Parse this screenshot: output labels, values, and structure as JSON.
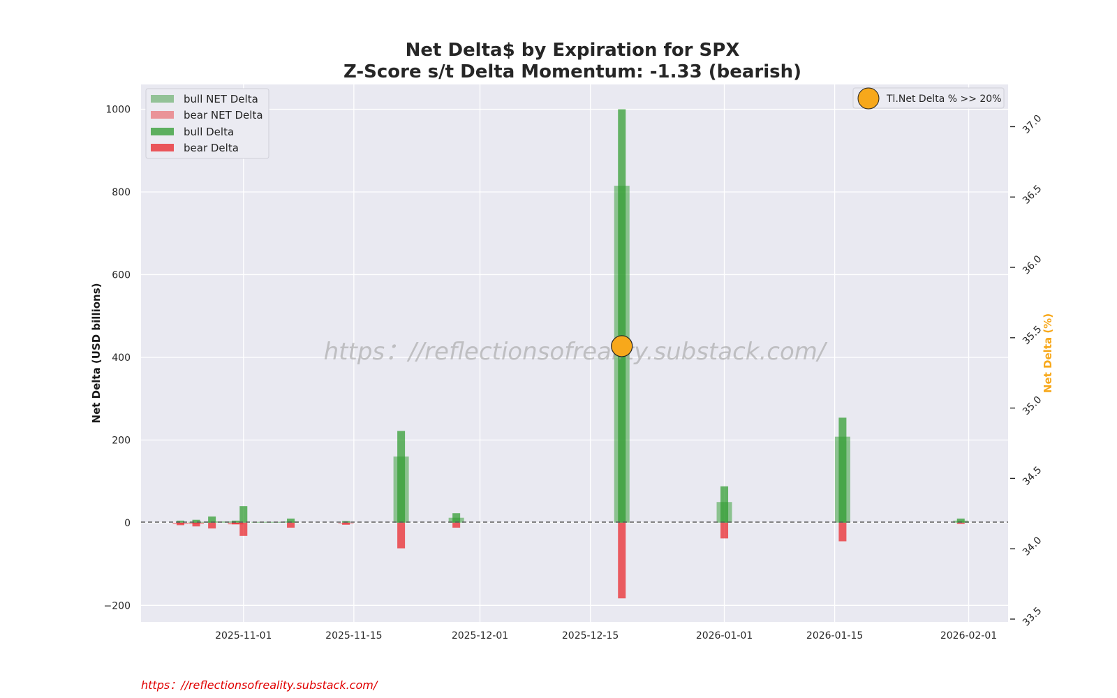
{
  "chart_data": {
    "type": "bar",
    "title": "Net Delta$ by Expiration for SPX",
    "subtitle": "Z-Score s/t Delta Momentum: -1.33 (bearish)",
    "ylabel": "Net Delta (USD billions)",
    "y2label": "Net Delta (%)",
    "ylim": [
      -240,
      1060
    ],
    "y2lim": [
      33.48,
      37.3
    ],
    "xlim": [
      "2025-10-19",
      "2026-02-06"
    ],
    "x_ticks": [
      "2025-11-01",
      "2025-11-15",
      "2025-12-01",
      "2025-12-15",
      "2026-01-01",
      "2026-01-15",
      "2026-02-01"
    ],
    "y_ticks": [
      -200,
      0,
      200,
      400,
      600,
      800,
      1000
    ],
    "y2_ticks": [
      33.5,
      34.0,
      34.5,
      35.0,
      35.5,
      36.0,
      36.5,
      37.0
    ],
    "y_tick_labels": [
      "−200",
      "0",
      "200",
      "400",
      "600",
      "800",
      "1000"
    ],
    "y2_tick_labels": [
      "33.5",
      "34.0",
      "34.5",
      "35.0",
      "35.5",
      "36.0",
      "36.5",
      "37.0"
    ],
    "x_tick_labels": [
      "2025-11-01",
      "2025-11-15",
      "2025-12-01",
      "2025-12-15",
      "2026-01-01",
      "2026-01-15",
      "2026-02-01"
    ],
    "grid": true,
    "zero_line": true,
    "legend_position": "upper-left",
    "legend2_position": "upper-right",
    "legend": [
      {
        "label": "bull NET Delta",
        "color": "#3c9a3c",
        "alpha": 0.5
      },
      {
        "label": "bear NET Delta",
        "color": "#e8272b",
        "alpha": 0.45
      },
      {
        "label": "bull Delta",
        "color": "#2e9b2e",
        "alpha": 0.75
      },
      {
        "label": "bear Delta",
        "color": "#ea2327",
        "alpha": 0.75
      }
    ],
    "legend2": {
      "label": "Tl.Net Delta % >> 20%",
      "color": "#f7a81b"
    },
    "colors": {
      "bull": "#2e9b2e",
      "bear": "#ea2327",
      "marker": "#f7a81b",
      "background": "#e9e9f1"
    },
    "series": [
      {
        "name": "bull NET Delta",
        "x": [
          "2025-10-26",
          "2025-10-28",
          "2025-10-30",
          "2025-11-03",
          "2025-11-05",
          "2025-11-07",
          "2025-11-21",
          "2025-11-28",
          "2025-12-19",
          "2026-01-01",
          "2026-01-16",
          "2026-01-31"
        ],
        "values": [
          2,
          3,
          3,
          2,
          2,
          3,
          160,
          12,
          815,
          50,
          208,
          5
        ]
      },
      {
        "name": "bear NET Delta",
        "x": [
          "2025-10-24",
          "2025-10-26",
          "2025-10-31",
          "2025-11-14"
        ],
        "values": [
          -3,
          -3,
          -4,
          -2
        ]
      },
      {
        "name": "bull Delta",
        "x": [
          "2025-10-24",
          "2025-10-26",
          "2025-10-28",
          "2025-10-31",
          "2025-11-01",
          "2025-11-07",
          "2025-11-14",
          "2025-11-21",
          "2025-11-28",
          "2025-12-19",
          "2026-01-01",
          "2026-01-16",
          "2026-01-31"
        ],
        "values": [
          5,
          7,
          15,
          5,
          40,
          10,
          4,
          222,
          23,
          1000,
          88,
          254,
          10
        ]
      },
      {
        "name": "bear Delta",
        "x": [
          "2025-10-24",
          "2025-10-26",
          "2025-10-28",
          "2025-10-31",
          "2025-11-01",
          "2025-11-07",
          "2025-11-14",
          "2025-11-21",
          "2025-11-28",
          "2025-12-19",
          "2026-01-01",
          "2026-01-16",
          "2026-01-31"
        ],
        "values": [
          -6,
          -9,
          -14,
          -4,
          -32,
          -12,
          -5,
          -62,
          -12,
          -183,
          -38,
          -45,
          -3
        ]
      }
    ],
    "markers": [
      {
        "name": "Tl.Net Delta % >> 20%",
        "x": "2025-12-19",
        "y2": 35.44
      }
    ],
    "watermark": "https：//reflectionsofreality.substack.com/",
    "footer": "https：//reflectionsofreality.substack.com/"
  }
}
